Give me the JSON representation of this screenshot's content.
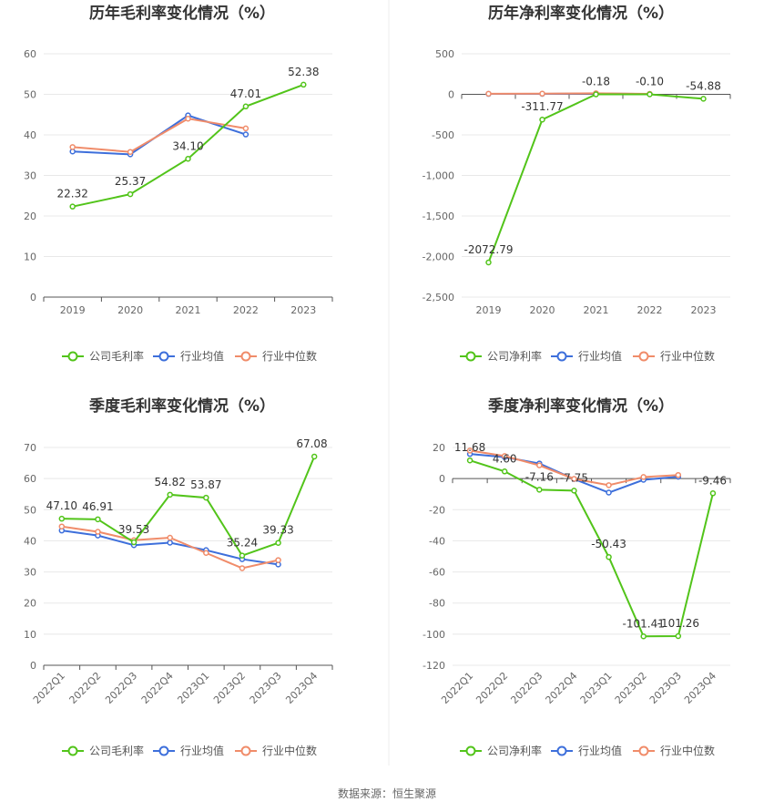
{
  "colors": {
    "company": "#52c41a",
    "industry_avg": "#3d6fdb",
    "industry_median": "#f08c6a",
    "grid": "#e8e8e8",
    "axis": "#555555",
    "tick_text": "#666666",
    "title": "#333333",
    "label_text": "#333333",
    "divider": "#eeeeee"
  },
  "source_text": "数据来源：恒生聚源",
  "chart_data": [
    {
      "type": "line",
      "title": "历年毛利率变化情况（%）",
      "categories": [
        "2019",
        "2020",
        "2021",
        "2022",
        "2023"
      ],
      "ylim": [
        0,
        60
      ],
      "yticks": [
        0,
        10,
        20,
        30,
        40,
        50,
        60
      ],
      "ytick_labels": [
        "0",
        "10",
        "20",
        "30",
        "40",
        "50",
        "60"
      ],
      "xlabel_rotated": false,
      "series": [
        {
          "name": "公司毛利率",
          "key": "company",
          "values": [
            22.32,
            25.37,
            34.1,
            47.01,
            52.38
          ],
          "labels": [
            "22.32",
            "25.37",
            "34.10",
            "47.01",
            "52.38"
          ]
        },
        {
          "name": "行业均值",
          "key": "industry_avg",
          "values": [
            35.9,
            35.2,
            44.8,
            40.1,
            null
          ]
        },
        {
          "name": "行业中位数",
          "key": "industry_median",
          "values": [
            37.0,
            35.8,
            44.0,
            41.6,
            null
          ]
        }
      ]
    },
    {
      "type": "line",
      "title": "历年净利率变化情况（%）",
      "categories": [
        "2019",
        "2020",
        "2021",
        "2022",
        "2023"
      ],
      "ylim": [
        -2500,
        500
      ],
      "yticks": [
        -2500,
        -2000,
        -1500,
        -1000,
        -500,
        0,
        500
      ],
      "ytick_labels": [
        "-2,500",
        "-2,000",
        "-1,500",
        "-1,000",
        "-500",
        "0",
        "500"
      ],
      "xlabel_rotated": false,
      "series": [
        {
          "name": "公司净利率",
          "key": "company",
          "values": [
            -2072.79,
            -311.77,
            -0.18,
            -0.1,
            -54.88
          ],
          "labels": [
            "-2072.79",
            "-311.77",
            "-0.18",
            "-0.10",
            "-54.88"
          ]
        },
        {
          "name": "行业均值",
          "key": "industry_avg",
          "values": [
            5,
            6,
            10,
            4,
            null
          ]
        },
        {
          "name": "行业中位数",
          "key": "industry_median",
          "values": [
            7,
            8,
            13,
            6,
            null
          ]
        }
      ]
    },
    {
      "type": "line",
      "title": "季度毛利率变化情况（%）",
      "categories": [
        "2022Q1",
        "2022Q2",
        "2022Q3",
        "2022Q4",
        "2023Q1",
        "2023Q2",
        "2023Q3",
        "2023Q4"
      ],
      "ylim": [
        0,
        70
      ],
      "yticks": [
        0,
        10,
        20,
        30,
        40,
        50,
        60,
        70
      ],
      "ytick_labels": [
        "0",
        "10",
        "20",
        "30",
        "40",
        "50",
        "60",
        "70"
      ],
      "xlabel_rotated": true,
      "series": [
        {
          "name": "公司毛利率",
          "key": "company",
          "values": [
            47.1,
            46.91,
            39.53,
            54.82,
            53.87,
            35.24,
            39.33,
            67.08
          ],
          "labels": [
            "47.10",
            "46.91",
            "39.53",
            "54.82",
            "53.87",
            "35.24",
            "39.33",
            "67.08"
          ]
        },
        {
          "name": "行业均值",
          "key": "industry_avg",
          "values": [
            43.3,
            41.7,
            38.6,
            39.4,
            37.0,
            34.1,
            32.4,
            null
          ]
        },
        {
          "name": "行业中位数",
          "key": "industry_median",
          "values": [
            44.6,
            42.9,
            40.2,
            41.0,
            36.1,
            31.2,
            33.8,
            null
          ]
        }
      ]
    },
    {
      "type": "line",
      "title": "季度净利率变化情况（%）",
      "categories": [
        "2022Q1",
        "2022Q2",
        "2022Q3",
        "2022Q4",
        "2023Q1",
        "2023Q2",
        "2023Q3",
        "2023Q4"
      ],
      "ylim": [
        -120,
        20
      ],
      "yticks": [
        -120,
        -100,
        -80,
        -60,
        -40,
        -20,
        0,
        20
      ],
      "ytick_labels": [
        "-120",
        "-100",
        "-80",
        "-60",
        "-40",
        "-20",
        "0",
        "20"
      ],
      "xlabel_rotated": true,
      "series": [
        {
          "name": "公司净利率",
          "key": "company",
          "values": [
            11.68,
            4.6,
            -7.16,
            -7.75,
            -50.43,
            -101.41,
            -101.26,
            -9.46
          ],
          "labels": [
            "11.68",
            "4.60",
            "-7.16",
            "-7.75",
            "-50.43",
            "-101.41",
            "-101.26",
            "-9.46"
          ]
        },
        {
          "name": "行业均值",
          "key": "industry_avg",
          "values": [
            15.8,
            13.8,
            9.7,
            -0.3,
            -9.0,
            -0.8,
            1.2,
            null
          ]
        },
        {
          "name": "行业中位数",
          "key": "industry_median",
          "values": [
            18.0,
            14.5,
            8.5,
            -0.2,
            -4.2,
            1.0,
            2.3,
            null
          ]
        }
      ]
    }
  ]
}
